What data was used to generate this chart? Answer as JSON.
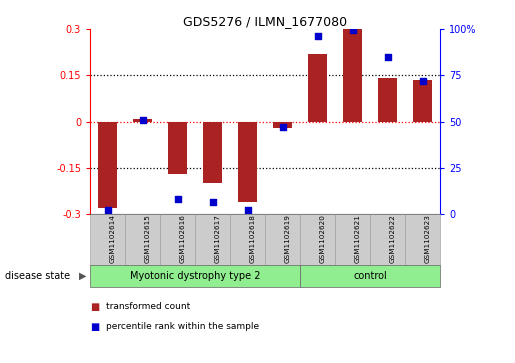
{
  "title": "GDS5276 / ILMN_1677080",
  "samples": [
    "GSM1102614",
    "GSM1102615",
    "GSM1102616",
    "GSM1102617",
    "GSM1102618",
    "GSM1102619",
    "GSM1102620",
    "GSM1102621",
    "GSM1102622",
    "GSM1102623"
  ],
  "red_values": [
    -0.28,
    0.01,
    -0.17,
    -0.2,
    -0.26,
    -0.02,
    0.22,
    0.3,
    0.14,
    0.135
  ],
  "blue_values": [
    2.0,
    51.0,
    8.0,
    6.5,
    2.5,
    47.0,
    96.0,
    99.5,
    85.0,
    72.0
  ],
  "ylim_left": [
    -0.3,
    0.3
  ],
  "ylim_right": [
    0,
    100
  ],
  "yticks_left": [
    -0.3,
    -0.15,
    0.0,
    0.15,
    0.3
  ],
  "ytick_labels_left": [
    "-0.3",
    "-0.15",
    "0",
    "0.15",
    "0.3"
  ],
  "yticks_right": [
    0,
    25,
    50,
    75,
    100
  ],
  "ytick_labels_right": [
    "0",
    "25",
    "50",
    "75",
    "100%"
  ],
  "group_separator": 6,
  "group1_label": "Myotonic dystrophy type 2",
  "group2_label": "control",
  "group_color": "#90EE90",
  "bar_width": 0.55,
  "red_color": "#AA2222",
  "blue_color": "#0000CC",
  "label_box_color": "#CCCCCC",
  "disease_state_label": "disease state",
  "legend_red": "transformed count",
  "legend_blue": "percentile rank within the sample",
  "blue_marker_size": 18,
  "fig_width": 5.15,
  "fig_height": 3.63,
  "dpi": 100
}
